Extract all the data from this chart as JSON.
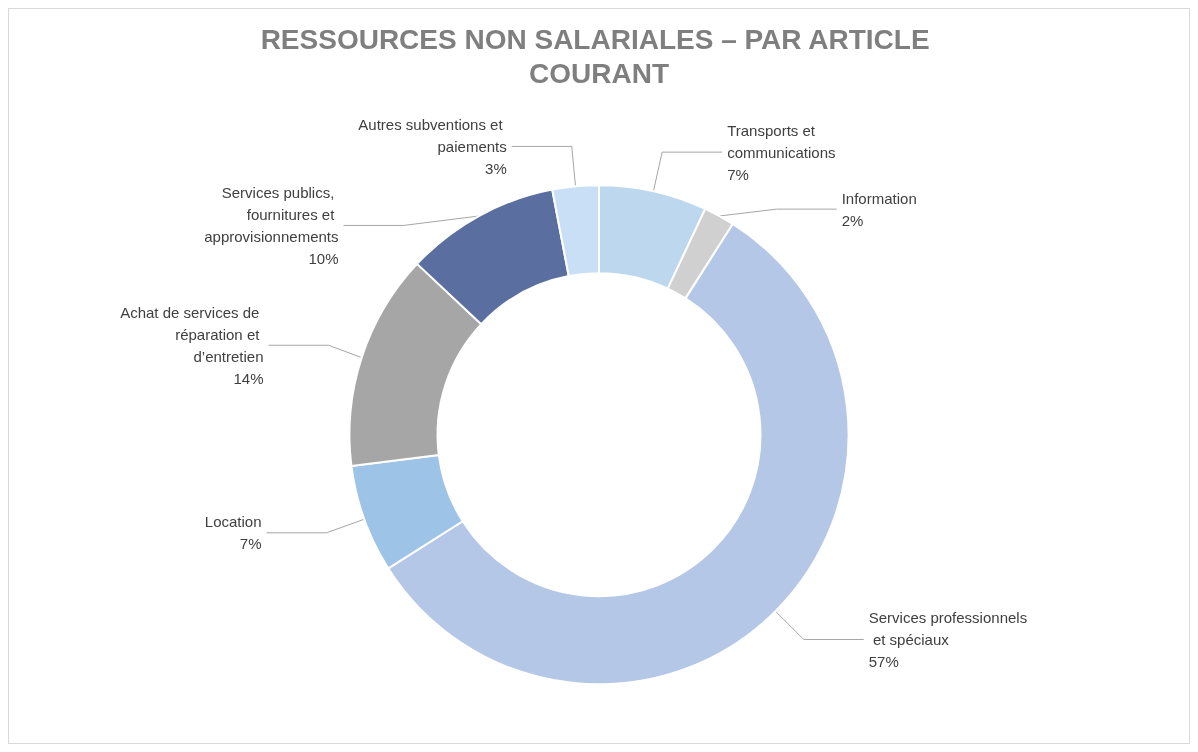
{
  "chart_data": {
    "type": "donut",
    "title": "RESSOURCES NON SALARIALES – PAR ARTICLE COURANT",
    "categories": [
      "Transports et communications",
      "Information",
      "Services professionnels et spéciaux",
      "Location",
      "Achat de services de réparation et d’entretien",
      "Services publics, fournitures et approvisionnements",
      "Autres subventions et paiements"
    ],
    "values": [
      7,
      2,
      57,
      7,
      14,
      10,
      3
    ],
    "value_labels": [
      "7%",
      "2%",
      "57%",
      "7%",
      "14%",
      "10%",
      "3%"
    ],
    "colors": [
      "#bdd7ee",
      "#d0d0d0",
      "#b4c7e7",
      "#9dc3e6",
      "#a6a6a6",
      "#5a6fa0",
      "#c9dff5"
    ],
    "legend": false
  }
}
